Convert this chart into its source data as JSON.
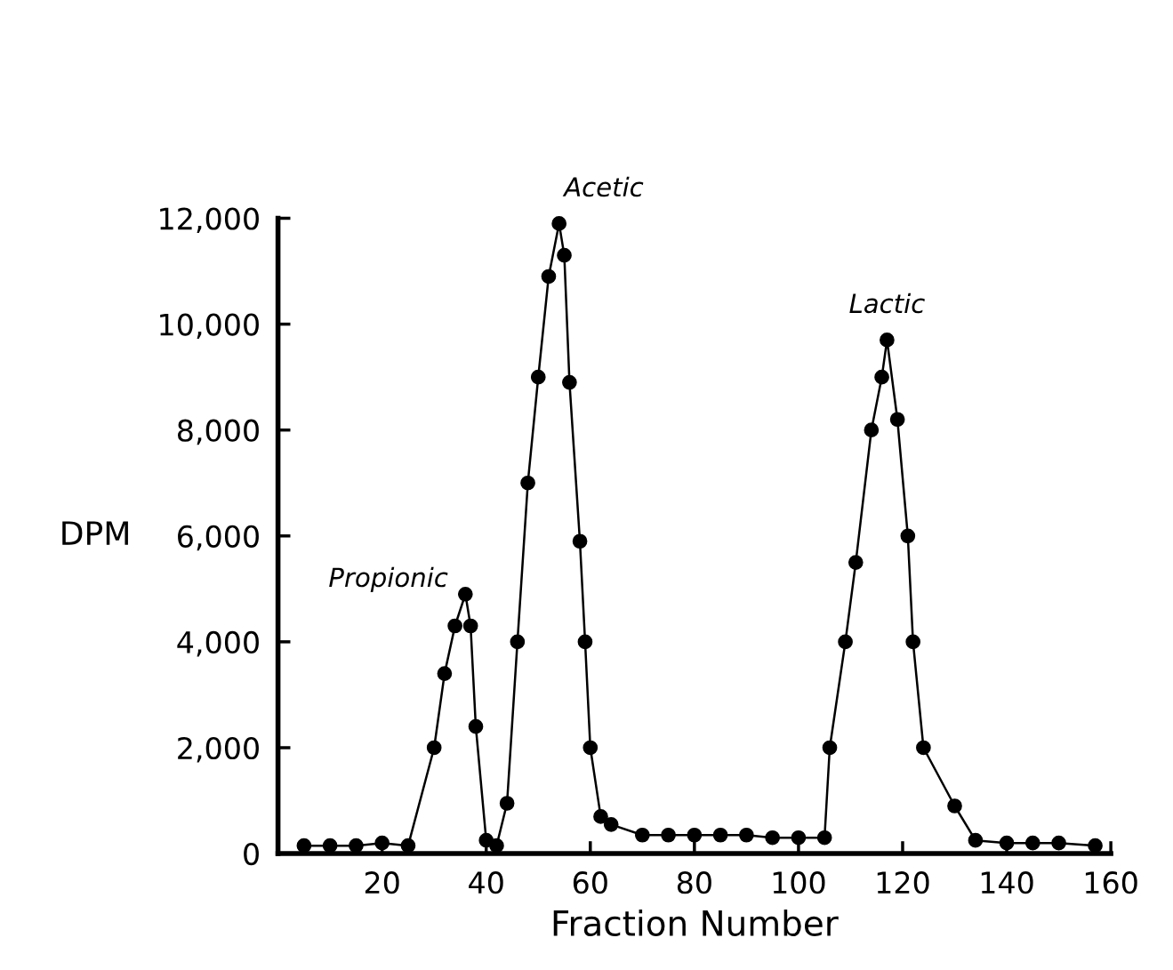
{
  "chart_data": {
    "type": "line",
    "xlabel": "Fraction Number",
    "ylabel": "DPM",
    "x": [
      5,
      10,
      15,
      20,
      25,
      30,
      32,
      34,
      36,
      37,
      38,
      40,
      42,
      44,
      46,
      48,
      50,
      52,
      54,
      55,
      56,
      58,
      59,
      60,
      62,
      64,
      70,
      75,
      80,
      85,
      90,
      95,
      100,
      105,
      106,
      109,
      111,
      114,
      116,
      117,
      119,
      121,
      122,
      124,
      130,
      134,
      140,
      145,
      150,
      157
    ],
    "series": [
      {
        "color": "#000000",
        "values": [
          150,
          150,
          150,
          200,
          150,
          2000,
          3400,
          4300,
          4900,
          4300,
          2400,
          250,
          150,
          950,
          4000,
          7000,
          9000,
          10900,
          11900,
          11300,
          8900,
          5900,
          4000,
          2000,
          700,
          550,
          350,
          350,
          350,
          350,
          350,
          300,
          300,
          300,
          2000,
          4000,
          5500,
          8000,
          9000,
          9700,
          8200,
          6000,
          4000,
          2000,
          900,
          250,
          200,
          200,
          200,
          150
        ]
      }
    ],
    "xlim": [
      0,
      160
    ],
    "ylim": [
      0,
      12000
    ],
    "xticks": [
      20,
      40,
      60,
      80,
      100,
      120,
      140,
      160
    ],
    "yticks": [
      {
        "value": 0,
        "label": "0"
      },
      {
        "value": 2000,
        "label": "2,000"
      },
      {
        "value": 4000,
        "label": "4,000"
      },
      {
        "value": 6000,
        "label": "6,000"
      },
      {
        "value": 8000,
        "label": "8,000"
      },
      {
        "value": 10000,
        "label": "10,000"
      },
      {
        "value": 12000,
        "label": "12,000"
      }
    ],
    "marker": "circle",
    "line_style": "solid",
    "grid": false,
    "legend": false,
    "annotations": [
      {
        "text": "Propionic",
        "x": 36,
        "y": 4900
      },
      {
        "text": "Acetic",
        "x": 54,
        "y": 11900
      },
      {
        "text": "Lactic",
        "x": 117,
        "y": 9700
      }
    ]
  }
}
